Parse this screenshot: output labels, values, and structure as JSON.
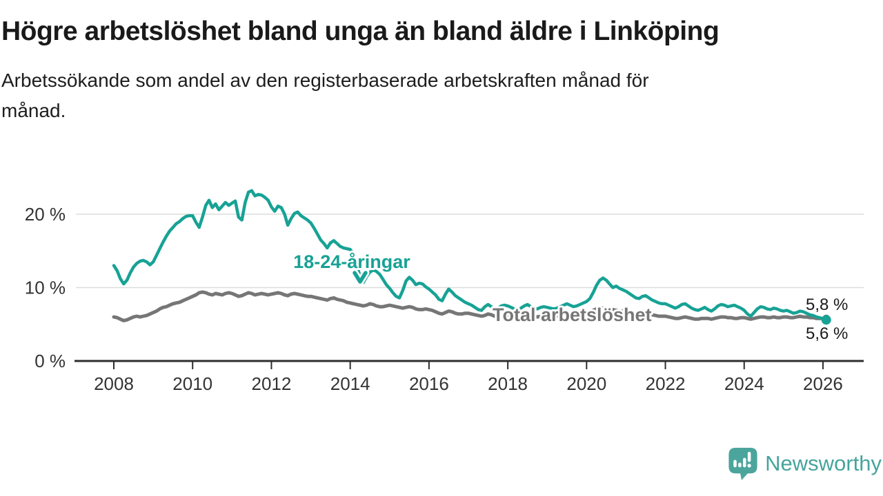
{
  "page": {
    "title": "Högre arbetslöshet bland unga än bland äldre i Linköping",
    "subtitle_lines": [
      "Arbetssökande som andel av den registerbaserade arbetskraften månad för",
      "månad."
    ]
  },
  "logo": {
    "text": "Newsworthy",
    "color": "#46a49c",
    "icon": "newsworthy-speech-bubble-bar-chart"
  },
  "chart_data": {
    "type": "line",
    "title": "Högre arbetslöshet bland unga än bland äldre i Linköping",
    "subtitle": "Arbetssökande som andel av den registerbaserade arbetskraften månad för månad.",
    "x_unit": "monthly, year fraction",
    "x_start": 2008.0,
    "x_step_months": 1,
    "x_domain": [
      "2008-01",
      "2026-02"
    ],
    "ylim": [
      0,
      24
    ],
    "grid": "horizontal",
    "style": {
      "grid_color": "#dcdcdc",
      "axis_color": "#2d2d2d",
      "tick_text_color": "#333333"
    },
    "y_ticks": [
      {
        "value": 0,
        "label": "0 %"
      },
      {
        "value": 10,
        "label": "10 %"
      },
      {
        "value": 20,
        "label": "20 %"
      }
    ],
    "x_ticks": [
      {
        "year": 2008,
        "label": "2008"
      },
      {
        "year": 2010,
        "label": "2010"
      },
      {
        "year": 2012,
        "label": "2012"
      },
      {
        "year": 2014,
        "label": "2014"
      },
      {
        "year": 2016,
        "label": "2016"
      },
      {
        "year": 2018,
        "label": "2018"
      },
      {
        "year": 2020,
        "label": "2020"
      },
      {
        "year": 2022,
        "label": "2022"
      },
      {
        "year": 2024,
        "label": "2024"
      },
      {
        "year": 2026,
        "label": "2026"
      }
    ],
    "series": [
      {
        "name": "18-24-åringar",
        "color": "#17a295",
        "end_label": "5,6 %",
        "end_value": 5.6,
        "values": [
          13.0,
          12.3,
          11.2,
          10.5,
          11.0,
          12.0,
          12.8,
          13.3,
          13.6,
          13.7,
          13.5,
          13.1,
          13.5,
          14.4,
          15.3,
          16.2,
          17.0,
          17.7,
          18.2,
          18.7,
          19.0,
          19.4,
          19.7,
          19.8,
          19.8,
          18.9,
          18.2,
          19.6,
          21.2,
          21.9,
          20.9,
          21.4,
          20.6,
          21.1,
          21.6,
          21.2,
          21.5,
          21.8,
          19.6,
          19.2,
          21.6,
          23.0,
          23.2,
          22.5,
          22.7,
          22.6,
          22.3,
          21.9,
          21.0,
          20.4,
          21.1,
          20.9,
          20.0,
          18.5,
          19.4,
          20.1,
          20.3,
          19.8,
          19.5,
          19.2,
          18.8,
          18.1,
          17.3,
          16.5,
          16.0,
          15.4,
          16.1,
          16.4,
          16.0,
          15.6,
          15.4,
          15.3,
          15.2,
          14.5,
          13.1,
          11.5,
          10.7,
          11.5,
          12.1,
          12.4,
          12.2,
          11.8,
          11.1,
          10.4,
          9.9,
          9.3,
          8.8,
          8.6,
          9.6,
          10.9,
          11.4,
          11.0,
          10.4,
          10.6,
          10.5,
          10.1,
          9.8,
          9.4,
          9.0,
          8.4,
          8.2,
          9.1,
          9.8,
          9.4,
          8.9,
          8.6,
          8.3,
          8.0,
          7.8,
          7.6,
          7.3,
          7.0,
          6.9,
          7.4,
          7.7,
          7.4,
          7.0,
          7.2,
          7.5,
          7.6,
          7.5,
          7.3,
          7.1,
          7.0,
          7.2,
          7.5,
          7.7,
          7.4,
          7.2,
          7.1,
          7.3,
          7.4,
          7.3,
          7.2,
          7.1,
          7.2,
          7.4,
          7.6,
          7.8,
          7.6,
          7.4,
          7.5,
          7.7,
          7.9,
          8.1,
          8.5,
          9.3,
          10.3,
          11.0,
          11.3,
          11.0,
          10.5,
          10.0,
          10.2,
          9.9,
          9.7,
          9.5,
          9.2,
          8.9,
          8.6,
          8.5,
          8.8,
          8.9,
          8.6,
          8.3,
          8.1,
          7.9,
          7.8,
          7.8,
          7.6,
          7.4,
          7.2,
          7.4,
          7.7,
          7.8,
          7.5,
          7.2,
          7.0,
          6.9,
          7.1,
          7.3,
          7.0,
          6.8,
          7.1,
          7.5,
          7.7,
          7.6,
          7.4,
          7.5,
          7.6,
          7.4,
          7.2,
          6.9,
          6.4,
          6.1,
          6.6,
          7.1,
          7.4,
          7.3,
          7.1,
          7.0,
          7.2,
          7.1,
          6.9,
          6.8,
          6.9,
          6.7,
          6.5,
          6.6,
          6.8,
          6.7,
          6.5,
          6.3,
          6.2,
          6.0,
          5.9,
          5.7,
          5.6
        ]
      },
      {
        "name": "Total arbetslöshet",
        "color": "#767676",
        "end_label": "5,8 %",
        "end_value": 5.8,
        "values": [
          6.0,
          5.9,
          5.7,
          5.5,
          5.6,
          5.8,
          6.0,
          6.1,
          6.0,
          6.1,
          6.2,
          6.4,
          6.6,
          6.8,
          7.1,
          7.3,
          7.4,
          7.6,
          7.8,
          7.9,
          8.0,
          8.2,
          8.4,
          8.6,
          8.8,
          9.0,
          9.3,
          9.4,
          9.3,
          9.1,
          9.0,
          9.2,
          9.1,
          9.0,
          9.2,
          9.3,
          9.2,
          9.0,
          8.8,
          8.9,
          9.1,
          9.3,
          9.2,
          9.0,
          9.1,
          9.2,
          9.1,
          9.0,
          9.1,
          9.2,
          9.3,
          9.2,
          9.0,
          8.9,
          9.1,
          9.2,
          9.1,
          9.0,
          8.9,
          8.8,
          8.8,
          8.7,
          8.6,
          8.5,
          8.4,
          8.3,
          8.5,
          8.6,
          8.4,
          8.3,
          8.2,
          8.0,
          7.9,
          7.8,
          7.7,
          7.6,
          7.5,
          7.6,
          7.8,
          7.7,
          7.5,
          7.4,
          7.4,
          7.5,
          7.6,
          7.5,
          7.4,
          7.3,
          7.2,
          7.3,
          7.4,
          7.3,
          7.1,
          7.0,
          7.0,
          7.1,
          7.0,
          6.9,
          6.7,
          6.5,
          6.4,
          6.6,
          6.8,
          6.7,
          6.5,
          6.4,
          6.4,
          6.5,
          6.5,
          6.4,
          6.3,
          6.2,
          6.1,
          6.2,
          6.4,
          6.3,
          6.1,
          6.1,
          6.2,
          6.2,
          6.2,
          6.1,
          6.0,
          6.0,
          6.1,
          6.2,
          6.3,
          6.2,
          6.1,
          6.0,
          6.1,
          6.1,
          6.1,
          6.1,
          6.0,
          6.1,
          6.2,
          6.3,
          6.4,
          6.3,
          6.2,
          6.2,
          6.3,
          6.4,
          6.5,
          6.6,
          6.9,
          7.1,
          7.2,
          7.2,
          7.1,
          7.0,
          7.0,
          6.9,
          6.8,
          6.8,
          6.8,
          6.7,
          6.6,
          6.5,
          6.4,
          6.4,
          6.5,
          6.4,
          6.3,
          6.2,
          6.1,
          6.1,
          6.1,
          6.0,
          5.9,
          5.8,
          5.8,
          5.9,
          6.0,
          5.9,
          5.8,
          5.7,
          5.7,
          5.8,
          5.8,
          5.8,
          5.7,
          5.8,
          5.9,
          6.0,
          6.0,
          5.9,
          5.9,
          5.8,
          5.8,
          5.9,
          5.9,
          5.8,
          5.7,
          5.8,
          5.9,
          6.0,
          6.0,
          5.9,
          5.9,
          6.0,
          5.9,
          5.9,
          6.0,
          6.0,
          5.9,
          5.9,
          6.0,
          6.1,
          6.0,
          6.0,
          5.9,
          5.9,
          5.8,
          5.8,
          5.8,
          5.8
        ]
      }
    ]
  }
}
